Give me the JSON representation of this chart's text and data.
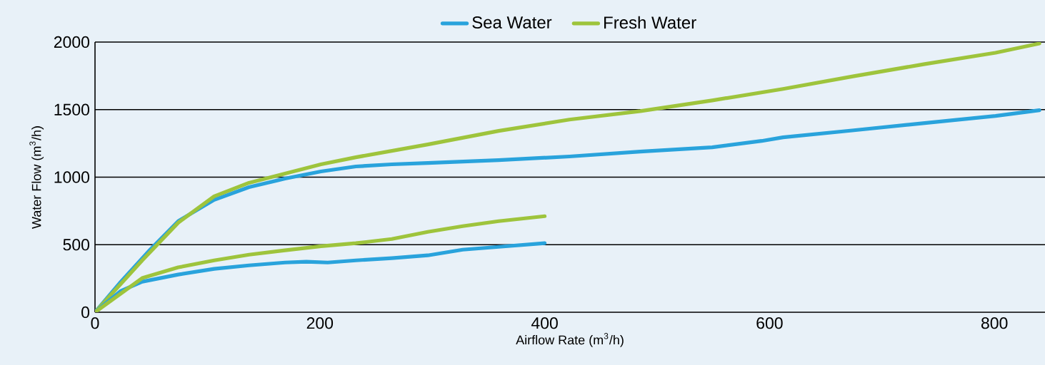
{
  "chart_data": {
    "type": "line",
    "xlabel": "Airflow Rate (m$^{3}$/h)",
    "ylabel": "Water Flow (m$^{3}$/h)",
    "xlim": [
      0,
      845
    ],
    "ylim": [
      0,
      2000
    ],
    "xticks": [
      0,
      200,
      400,
      600,
      800
    ],
    "yticks": [
      0,
      500,
      1000,
      1500,
      2000
    ],
    "grid": "y",
    "legend": "top",
    "marker": "none",
    "line_style": "solid",
    "series": [
      {
        "name": "Sea Water",
        "color": "#29a3dc",
        "x": [
          0,
          23,
          49,
          74,
          106,
          137,
          169,
          201,
          232,
          264,
          296,
          359,
          422,
          485,
          549,
          593,
          612,
          675,
          738,
          801,
          840
        ],
        "values": [
          0,
          226,
          463,
          674,
          832,
          926,
          989,
          1042,
          1079,
          1095,
          1105,
          1126,
          1153,
          1189,
          1221,
          1268,
          1295,
          1347,
          1400,
          1453,
          1495
        ]
      },
      {
        "name": "Fresh Water",
        "color": "#9ec43c",
        "x": [
          0,
          42,
          74,
          106,
          137,
          169,
          201,
          232,
          296,
          359,
          422,
          485,
          549,
          612,
          675,
          738,
          801,
          840
        ],
        "values": [
          0,
          384,
          663,
          858,
          958,
          1026,
          1095,
          1147,
          1242,
          1342,
          1426,
          1489,
          1568,
          1653,
          1747,
          1837,
          1921,
          1989
        ]
      },
      {
        "color": "#29a3dc",
        "x": [
          0,
          23,
          42,
          74,
          106,
          137,
          169,
          188,
          207,
          232,
          264,
          296,
          327,
          359,
          400
        ],
        "values": [
          0,
          158,
          226,
          279,
          321,
          347,
          368,
          374,
          368,
          384,
          400,
          421,
          463,
          484,
          511
        ]
      },
      {
        "color": "#9ec43c",
        "x": [
          0,
          42,
          74,
          106,
          137,
          169,
          201,
          232,
          264,
          296,
          327,
          359,
          400
        ],
        "values": [
          0,
          253,
          332,
          384,
          426,
          458,
          489,
          511,
          542,
          595,
          637,
          674,
          711
        ]
      }
    ]
  }
}
